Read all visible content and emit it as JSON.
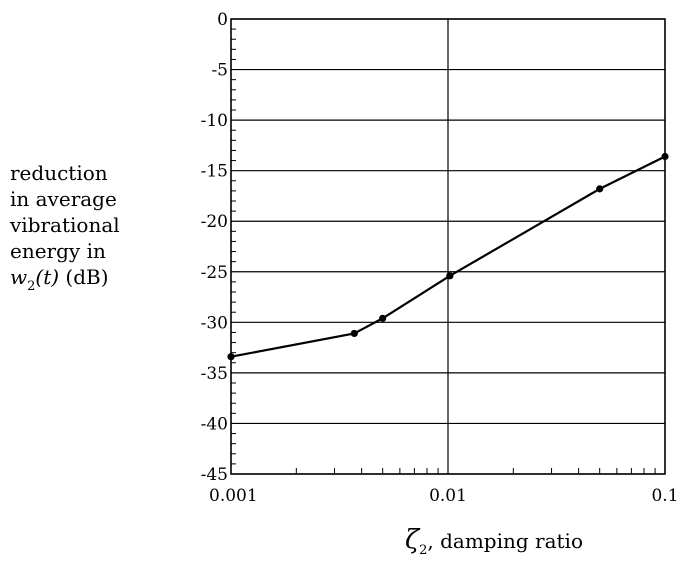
{
  "chart_data": {
    "type": "line",
    "xscale": "log",
    "xlim": [
      0.001,
      0.1
    ],
    "ylim": [
      -45,
      0
    ],
    "grid": true,
    "x_ticks": [
      "0.001",
      "0.01",
      "0.1"
    ],
    "y_ticks": [
      "0",
      "-5",
      "-10",
      "-15",
      "-20",
      "-25",
      "-30",
      "-35",
      "-40",
      "-45"
    ],
    "series": [
      {
        "x": [
          0.001,
          0.0037,
          0.005,
          0.0102,
          0.05,
          0.1
        ],
        "y": [
          -33.4,
          -31.1,
          -29.6,
          -25.4,
          -16.8,
          -13.6
        ]
      }
    ]
  },
  "ylabel": {
    "line1": "reduction",
    "line2": "in average",
    "line3": "vibrational",
    "line4": "energy in",
    "var_main": "w",
    "var_sub": "2",
    "var_arg": "(t)",
    "unit": " (dB)"
  },
  "xlabel": {
    "symbol": "ζ",
    "sub": "2",
    "text": ", damping ratio"
  }
}
